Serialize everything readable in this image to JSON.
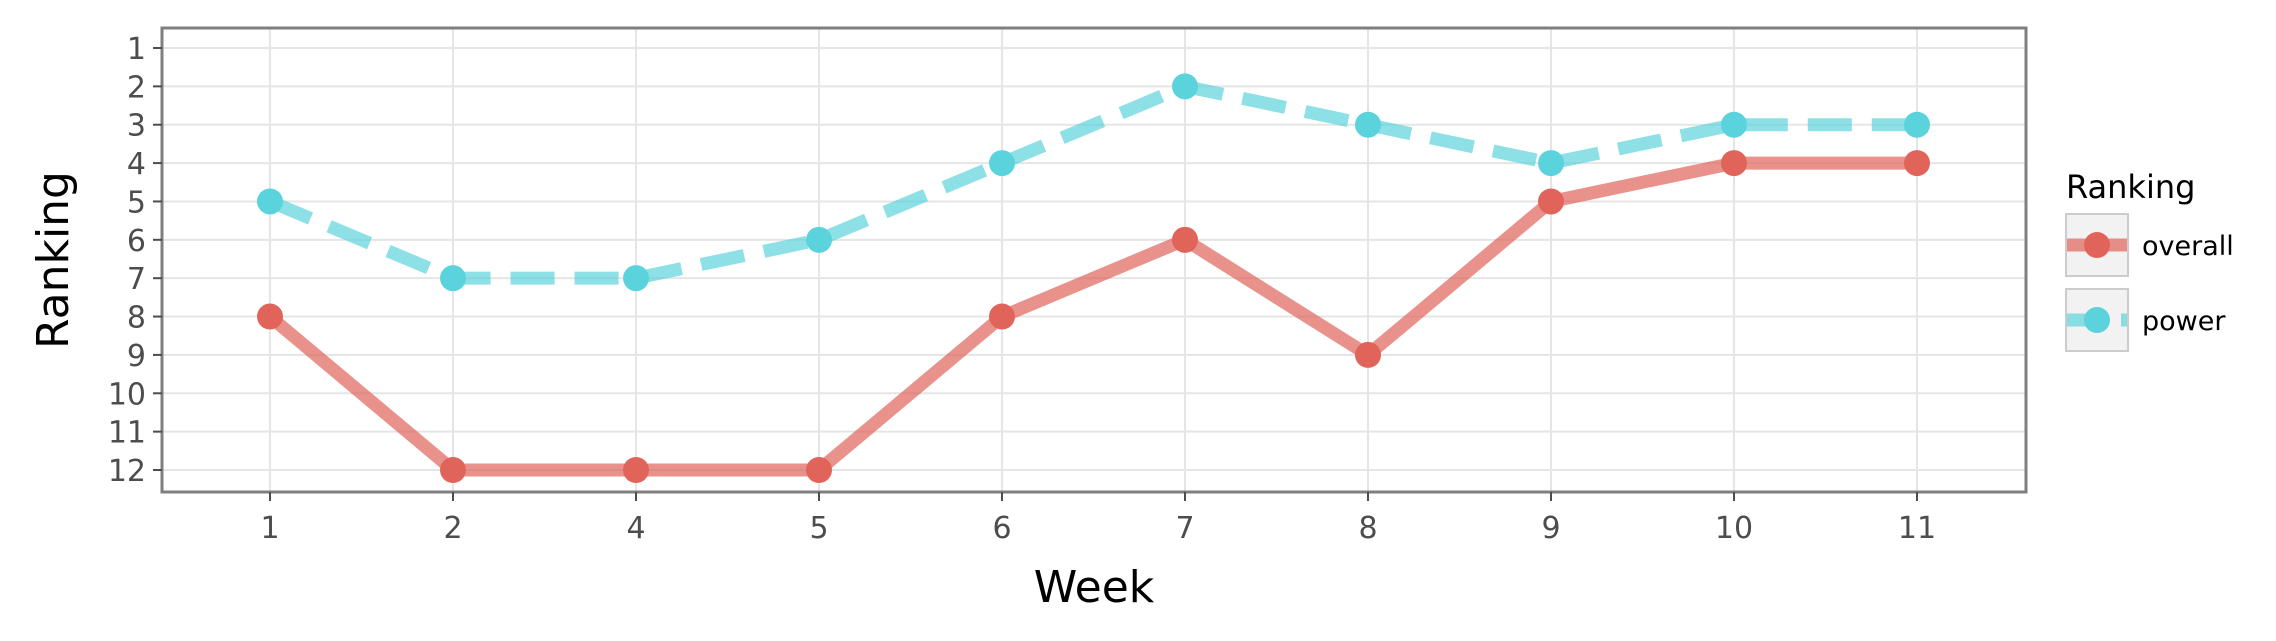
{
  "chart_data": {
    "type": "line",
    "title": "",
    "xlabel": "Week",
    "ylabel": "Ranking",
    "categories": [
      "1",
      "2",
      "4",
      "5",
      "6",
      "7",
      "8",
      "9",
      "10",
      "11"
    ],
    "y_ticks": [
      "1",
      "2",
      "3",
      "4",
      "5",
      "6",
      "7",
      "8",
      "9",
      "10",
      "11",
      "12"
    ],
    "ylim": [
      1,
      12
    ],
    "y_reversed": true,
    "grid": true,
    "legend": {
      "title": "Ranking",
      "position": "right"
    },
    "series": [
      {
        "name": "overall",
        "values": [
          8,
          12,
          12,
          12,
          8,
          6,
          9,
          5,
          4,
          4
        ],
        "color": "#e0645a",
        "line_style": "solid"
      },
      {
        "name": "power",
        "values": [
          5,
          7,
          7,
          6,
          4,
          2,
          3,
          4,
          3,
          3
        ],
        "color": "#5bd3dc",
        "line_style": "dashed"
      }
    ]
  }
}
